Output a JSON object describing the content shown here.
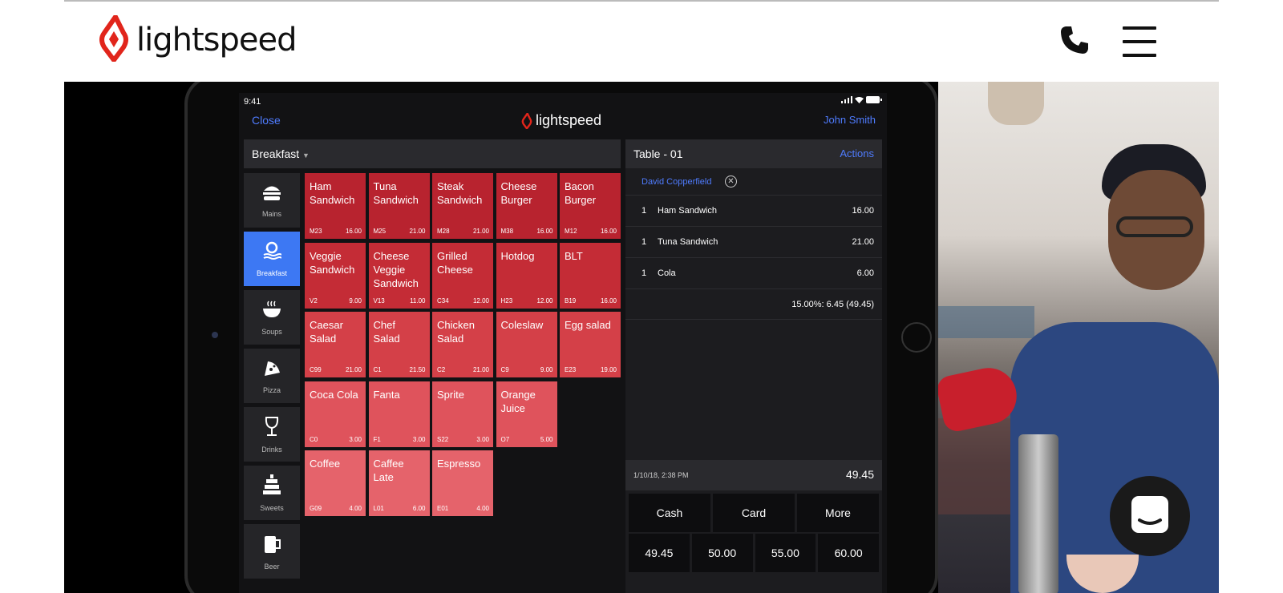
{
  "header": {
    "brand": "lightspeed",
    "phone_icon": "phone-icon",
    "menu_icon": "hamburger-menu-icon"
  },
  "pos": {
    "status_time": "9:41",
    "close_label": "Close",
    "app_brand": "lightspeed",
    "user_name": "John Smith",
    "category_selector": "Breakfast",
    "categories": [
      {
        "label": "Mains",
        "icon": "burger-icon"
      },
      {
        "label": "Breakfast",
        "icon": "breakfast-icon"
      },
      {
        "label": "Soups",
        "icon": "soup-bowl-icon"
      },
      {
        "label": "Pizza",
        "icon": "pizza-icon"
      },
      {
        "label": "Drinks",
        "icon": "wine-glass-icon"
      },
      {
        "label": "Sweets",
        "icon": "cake-icon"
      },
      {
        "label": "Beer",
        "icon": "beer-mug-icon"
      }
    ],
    "tiles": [
      {
        "name": "Ham Sandwich",
        "code": "M23",
        "price": "16.00"
      },
      {
        "name": "Tuna Sandwich",
        "code": "M25",
        "price": "21.00"
      },
      {
        "name": "Steak Sandwich",
        "code": "M28",
        "price": "21.00"
      },
      {
        "name": "Cheese Burger",
        "code": "M38",
        "price": "16.00"
      },
      {
        "name": "Bacon Burger",
        "code": "M12",
        "price": "16.00"
      },
      {
        "name": "Veggie Sandwich",
        "code": "V2",
        "price": "9.00"
      },
      {
        "name": "Cheese Veggie Sandwich",
        "code": "V13",
        "price": "11.00"
      },
      {
        "name": "Grilled Cheese",
        "code": "C34",
        "price": "12.00"
      },
      {
        "name": "Hotdog",
        "code": "H23",
        "price": "12.00"
      },
      {
        "name": "BLT",
        "code": "B19",
        "price": "16.00"
      },
      {
        "name": "Caesar Salad",
        "code": "C99",
        "price": "21.00"
      },
      {
        "name": "Chef Salad",
        "code": "C1",
        "price": "21.50"
      },
      {
        "name": "Chicken Salad",
        "code": "C2",
        "price": "21.00"
      },
      {
        "name": "Coleslaw",
        "code": "C9",
        "price": "9.00"
      },
      {
        "name": "Egg salad",
        "code": "E23",
        "price": "19.00"
      },
      {
        "name": "Coca Cola",
        "code": "C0",
        "price": "3.00"
      },
      {
        "name": "Fanta",
        "code": "F1",
        "price": "3.00"
      },
      {
        "name": "Sprite",
        "code": "S22",
        "price": "3.00"
      },
      {
        "name": "Orange Juice",
        "code": "O7",
        "price": "5.00"
      },
      {
        "name": "Coffee",
        "code": "G09",
        "price": "4.00"
      },
      {
        "name": "Caffee Late",
        "code": "L01",
        "price": "6.00"
      },
      {
        "name": "Espresso",
        "code": "E01",
        "price": "4.00"
      }
    ],
    "order": {
      "table": "Table - 01",
      "actions": "Actions",
      "customer": "David Copperfield",
      "lines": [
        {
          "qty": "1",
          "name": "Ham Sandwich",
          "price": "16.00"
        },
        {
          "qty": "1",
          "name": "Tuna Sandwich",
          "price": "21.00"
        },
        {
          "qty": "1",
          "name": "Cola",
          "price": "6.00"
        }
      ],
      "tax_line": "15.00%: 6.45 (49.45)",
      "date": "1/10/18, 2:38 PM",
      "total": "49.45",
      "pay_buttons": [
        "Cash",
        "Card",
        "More"
      ],
      "amounts": [
        "49.45",
        "50.00",
        "55.00",
        "60.00"
      ]
    }
  },
  "colors": {
    "row1": "#b8232f",
    "row2": "#c42c36",
    "row3": "#d44048",
    "row4": "#df535c",
    "row5": "#e5636b",
    "accent_blue": "#3d78f3",
    "brand_red": "#e1251b"
  },
  "chat_icon": "chat-bubble-icon"
}
